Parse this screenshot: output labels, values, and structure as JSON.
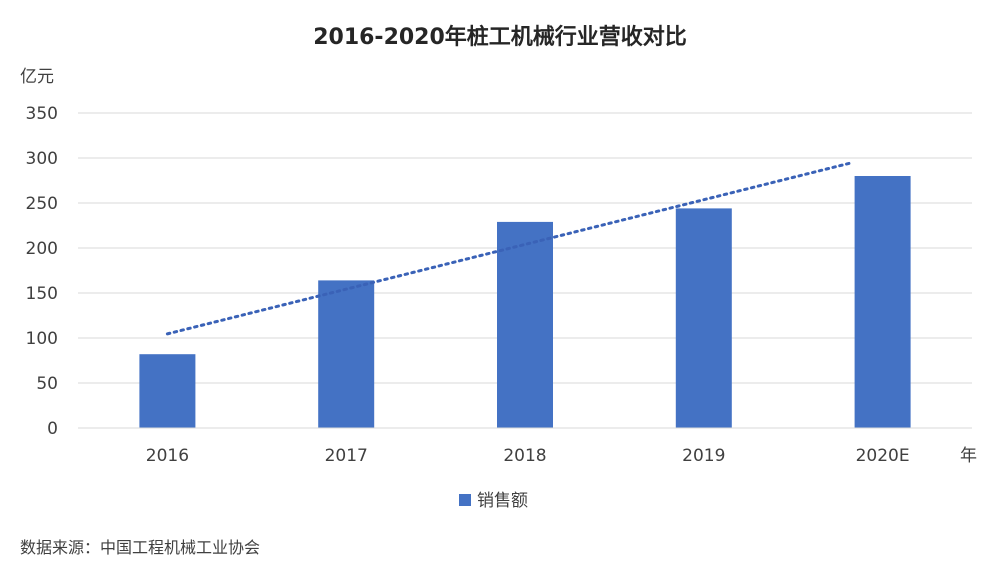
{
  "chart_data": {
    "type": "bar",
    "title": "2016-2020年桩工机械行业营收对比",
    "ylabel": "亿元",
    "xlabel": "年",
    "categories": [
      "2016",
      "2017",
      "2018",
      "2019",
      "2020E"
    ],
    "series": [
      {
        "name": "销售额",
        "values": [
          82,
          164,
          229,
          244,
          280
        ]
      }
    ],
    "trendline": {
      "type": "linear",
      "style": "dotted"
    },
    "yticks": [
      "0",
      "50",
      "100",
      "150",
      "200",
      "250",
      "300",
      "350"
    ],
    "ylim": [
      0,
      350
    ],
    "grid": true,
    "legend": "bottom"
  },
  "source": "数据来源：中国工程机械工业协会",
  "colors": {
    "bar": "#4472C4",
    "trend": "#3A62B7",
    "grid": "#D9D9D9",
    "text": "#404040"
  }
}
